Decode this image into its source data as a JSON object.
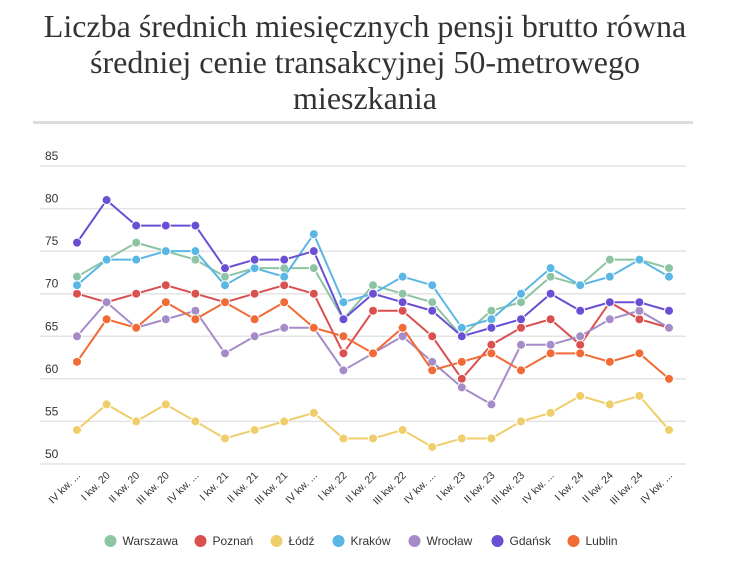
{
  "chart_data": {
    "type": "line",
    "title": "Liczba średnich miesięcznych pensji brutto równa średniej cenie transakcyjnej 50-metrowego mieszkania",
    "xlabel": "",
    "ylabel": "",
    "ylim": [
      50,
      85
    ],
    "yticks": [
      50,
      55,
      60,
      65,
      70,
      75,
      80,
      85
    ],
    "grid": true,
    "legend": "bottom",
    "categories": [
      "IV kw. ...",
      "I kw. 20",
      "II kw. 20",
      "III kw. 20",
      "IV kw. ...",
      "I kw. 21",
      "II kw. 21",
      "III kw. 21",
      "IV kw. ...",
      "I kw. 22",
      "II kw. 22",
      "III kw. 22",
      "IV kw. ...",
      "I kw. 23",
      "II kw. 23",
      "III kw. 23",
      "IV kw. ...",
      "I kw. 24",
      "II kw. 24",
      "III kw. 24",
      "IV kw. ..."
    ],
    "series": [
      {
        "name": "Warszawa",
        "color": "#8cc4a4",
        "values": [
          72,
          74,
          76,
          75,
          74,
          72,
          73,
          73,
          73,
          67,
          71,
          70,
          69,
          65,
          68,
          69,
          72,
          71,
          74,
          74,
          73
        ]
      },
      {
        "name": "Poznań",
        "color": "#d9504f",
        "values": [
          70,
          69,
          70,
          71,
          70,
          69,
          70,
          71,
          70,
          63,
          68,
          68,
          65,
          60,
          64,
          66,
          67,
          64,
          69,
          67,
          66
        ]
      },
      {
        "name": "Łódź",
        "color": "#f0cd6b",
        "values": [
          54,
          57,
          55,
          57,
          55,
          53,
          54,
          55,
          56,
          53,
          53,
          54,
          52,
          53,
          53,
          55,
          56,
          58,
          57,
          58,
          54
        ]
      },
      {
        "name": "Kraków",
        "color": "#5ab6e4",
        "values": [
          71,
          74,
          74,
          75,
          75,
          71,
          73,
          72,
          77,
          69,
          70,
          72,
          71,
          66,
          67,
          70,
          73,
          71,
          72,
          74,
          72
        ]
      },
      {
        "name": "Wrocław",
        "color": "#a58cc8",
        "values": [
          65,
          69,
          66,
          67,
          68,
          63,
          65,
          66,
          66,
          61,
          63,
          65,
          62,
          59,
          57,
          64,
          64,
          65,
          67,
          68,
          66
        ]
      },
      {
        "name": "Gdańsk",
        "color": "#6a4fd4",
        "values": [
          76,
          81,
          78,
          78,
          78,
          73,
          74,
          74,
          75,
          67,
          70,
          69,
          68,
          65,
          66,
          67,
          70,
          68,
          69,
          69,
          68
        ]
      },
      {
        "name": "Lublin",
        "color": "#f26a35",
        "values": [
          62,
          67,
          66,
          69,
          67,
          69,
          67,
          69,
          66,
          65,
          63,
          66,
          61,
          62,
          63,
          61,
          63,
          63,
          62,
          63,
          60
        ]
      }
    ]
  }
}
